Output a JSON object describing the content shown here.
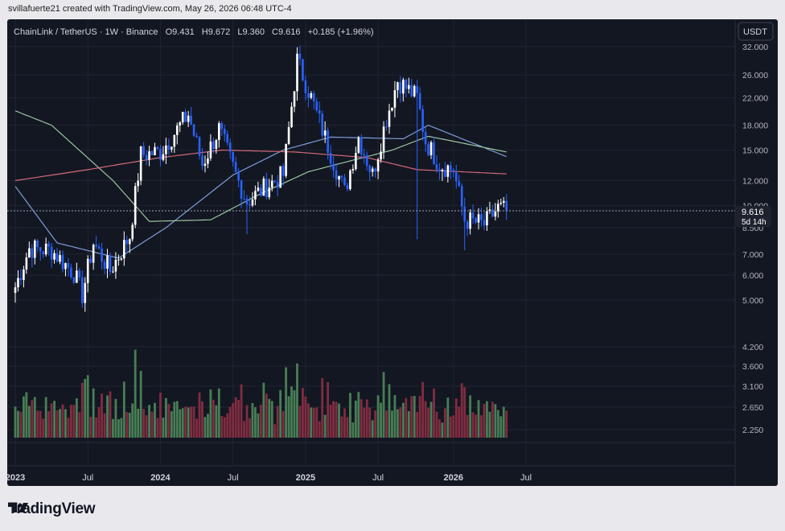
{
  "header": {
    "attribution": "svillafuerte21 created with TradingView.com, May 26, 2026 06:48 UTC-4"
  },
  "chart": {
    "symbol_line": "ChainLink / TetherUS · 1W · Binance",
    "o_label": "O",
    "o_value": "9.431",
    "h_label": "H",
    "h_value": "9.672",
    "l_label": "L",
    "l_value": "9.360",
    "c_label": "C",
    "c_value": "9.616",
    "change": "+0.185 (+1.96%)",
    "currency_button": "USDT",
    "last_price_label": "9.616",
    "countdown_label": "5d 14h"
  },
  "footer": {
    "brand": "TradingView"
  },
  "colors": {
    "up": "#ffffff",
    "down": "#2962ff",
    "vol_up": "#4f8a5b",
    "vol_down": "#8e2f45",
    "ma_blue": "#7e9ed9",
    "ma_green": "#9ac4a0",
    "ma_red": "#d46a78"
  },
  "chart_data": {
    "type": "candlestick",
    "title": "ChainLink / TetherUS · 1W · Binance",
    "y_scale": "log",
    "price_ticks": [
      32.0,
      26.0,
      22.0,
      18.0,
      15.0,
      12.0,
      10.0,
      8.5,
      7.0,
      6.0,
      5.0
    ],
    "price_tick_labels": [
      "32.000",
      "26.000",
      "22.000",
      "18.000",
      "15.000",
      "12.000",
      "10.000",
      "8.500",
      "7.000",
      "6.000",
      "5.000"
    ],
    "volume_tick_labels": [
      "4.200",
      "3.600",
      "3.100",
      "2.650",
      "2.250"
    ],
    "x_labels": [
      "2023",
      "Jul",
      "2024",
      "Jul",
      "2025",
      "Jul",
      "2026",
      "Jul"
    ],
    "last_price": 9.616,
    "price_path": [
      {
        "date": "2023-01-02",
        "close": 5.5
      },
      {
        "date": "2023-02-06",
        "close": 7.3
      },
      {
        "date": "2023-04-03",
        "close": 7.2
      },
      {
        "date": "2023-05-29",
        "close": 6.1
      },
      {
        "date": "2023-06-19",
        "close": 5.2
      },
      {
        "date": "2023-07-17",
        "close": 7.6
      },
      {
        "date": "2023-08-28",
        "close": 6.2
      },
      {
        "date": "2023-10-16",
        "close": 8.0
      },
      {
        "date": "2023-11-13",
        "close": 14.5
      },
      {
        "date": "2024-01-01",
        "close": 14.8
      },
      {
        "date": "2024-03-11",
        "close": 19.5
      },
      {
        "date": "2024-04-15",
        "close": 13.5
      },
      {
        "date": "2024-05-27",
        "close": 17.5
      },
      {
        "date": "2024-07-08",
        "close": 12.5
      },
      {
        "date": "2024-08-05",
        "close": 10.3
      },
      {
        "date": "2024-09-23",
        "close": 11.5
      },
      {
        "date": "2024-11-04",
        "close": 12.5
      },
      {
        "date": "2024-12-09",
        "close": 29.0
      },
      {
        "date": "2025-01-13",
        "close": 22.0
      },
      {
        "date": "2025-02-24",
        "close": 15.5
      },
      {
        "date": "2025-04-07",
        "close": 11.0
      },
      {
        "date": "2025-05-12",
        "close": 16.5
      },
      {
        "date": "2025-06-16",
        "close": 12.5
      },
      {
        "date": "2025-07-21",
        "close": 19.0
      },
      {
        "date": "2025-08-18",
        "close": 25.0
      },
      {
        "date": "2025-10-06",
        "close": 22.0
      },
      {
        "date": "2025-10-27",
        "close": 16.0
      },
      {
        "date": "2025-12-01",
        "close": 13.5
      },
      {
        "date": "2026-01-05",
        "close": 13.0
      },
      {
        "date": "2026-02-02",
        "close": 9.0
      },
      {
        "date": "2026-03-23",
        "close": 8.7
      },
      {
        "date": "2026-04-27",
        "close": 9.8
      },
      {
        "date": "2026-05-18",
        "close": 9.616
      }
    ],
    "moving_averages": [
      {
        "color": "blue",
        "points": [
          {
            "date": "2023-01-02",
            "value": 11.5
          },
          {
            "date": "2023-04-17",
            "value": 7.6
          },
          {
            "date": "2023-09-18",
            "value": 6.8
          },
          {
            "date": "2024-01-15",
            "value": 8.5
          },
          {
            "date": "2024-07-01",
            "value": 12.5
          },
          {
            "date": "2024-11-04",
            "value": 15.0
          },
          {
            "date": "2025-03-03",
            "value": 16.5
          },
          {
            "date": "2025-09-01",
            "value": 16.3
          },
          {
            "date": "2025-11-03",
            "value": 18.0
          },
          {
            "date": "2026-05-18",
            "value": 14.3
          }
        ]
      },
      {
        "color": "green",
        "points": [
          {
            "date": "2023-01-02",
            "value": 20.0
          },
          {
            "date": "2023-04-03",
            "value": 18.0
          },
          {
            "date": "2023-09-04",
            "value": 12.0
          },
          {
            "date": "2023-12-04",
            "value": 8.9
          },
          {
            "date": "2024-05-06",
            "value": 9.0
          },
          {
            "date": "2024-09-02",
            "value": 10.8
          },
          {
            "date": "2025-01-06",
            "value": 12.8
          },
          {
            "date": "2025-08-04",
            "value": 15.0
          },
          {
            "date": "2025-11-03",
            "value": 16.6
          },
          {
            "date": "2026-05-18",
            "value": 14.8
          }
        ]
      },
      {
        "color": "red",
        "points": [
          {
            "date": "2023-01-02",
            "value": 12.0
          },
          {
            "date": "2023-07-03",
            "value": 13.0
          },
          {
            "date": "2024-01-01",
            "value": 14.2
          },
          {
            "date": "2024-06-03",
            "value": 15.0
          },
          {
            "date": "2024-12-02",
            "value": 14.8
          },
          {
            "date": "2025-06-02",
            "value": 14.2
          },
          {
            "date": "2025-10-06",
            "value": 13.0
          },
          {
            "date": "2026-05-18",
            "value": 12.6
          }
        ]
      }
    ],
    "wick_extremes": [
      {
        "date": "2024-08-05",
        "low": 8.1
      },
      {
        "date": "2025-10-06",
        "low": 7.8
      },
      {
        "date": "2026-02-02",
        "low": 7.2
      }
    ],
    "volume_note": "volume bars, green=up week, red=down week",
    "grid": true,
    "legend": "top-left"
  }
}
